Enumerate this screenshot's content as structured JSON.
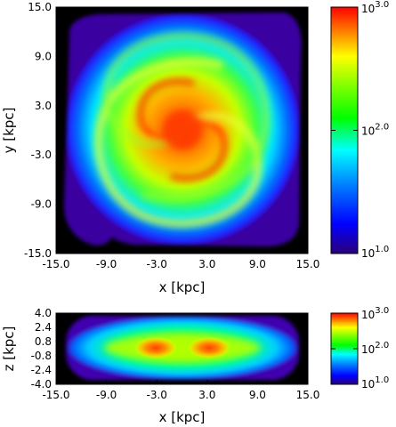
{
  "chart_data": [
    {
      "type": "heatmap",
      "view": "face-on",
      "xlabel": "x [kpc]",
      "ylabel": "y [kpc]",
      "xlim": [
        -15.0,
        15.0
      ],
      "ylim": [
        -15.0,
        15.0
      ],
      "xticks": [
        "-15.0",
        "-9.0",
        "-3.0",
        "3.0",
        "9.0",
        "15.0"
      ],
      "yticks": [
        "-15.0",
        "-9.0",
        "-3.0",
        "3.0",
        "9.0",
        "15.0"
      ],
      "colorbar": {
        "scale": "log",
        "range": [
          10,
          1000
        ],
        "ticks": [
          {
            "value": 10,
            "base": "10",
            "exp": "1.0"
          },
          {
            "value": 100,
            "base": "10",
            "exp": "2.0"
          },
          {
            "value": 1000,
            "base": "10",
            "exp": "3.0"
          }
        ],
        "colormap": [
          "#2b007a",
          "#0000ff",
          "#0080ff",
          "#00ffff",
          "#00ff00",
          "#80ff00",
          "#ffff00",
          "#ff8000",
          "#ff0000"
        ]
      },
      "structure": "two-armed spiral with dense central bulge",
      "extent_kpc": 14
    },
    {
      "type": "heatmap",
      "view": "edge-on",
      "xlabel": "x [kpc]",
      "ylabel": "z [kpc]",
      "xlim": [
        -15.0,
        15.0
      ],
      "ylim": [
        -4.0,
        4.0
      ],
      "xticks": [
        "-15.0",
        "-9.0",
        "-3.0",
        "3.0",
        "9.0",
        "15.0"
      ],
      "yticks": [
        "4.0",
        "2.4",
        "0.8",
        "-0.8",
        "-2.4",
        "-4.0"
      ],
      "colorbar": {
        "scale": "log",
        "range": [
          10,
          1000
        ],
        "ticks": [
          {
            "value": 10,
            "base": "10",
            "exp": "1.0"
          },
          {
            "value": 100,
            "base": "10",
            "exp": "2.0"
          },
          {
            "value": 1000,
            "base": "10",
            "exp": "3.0"
          }
        ]
      },
      "structure": "thin disk with two dense knots near x = -3 and x = 3 kpc"
    }
  ]
}
